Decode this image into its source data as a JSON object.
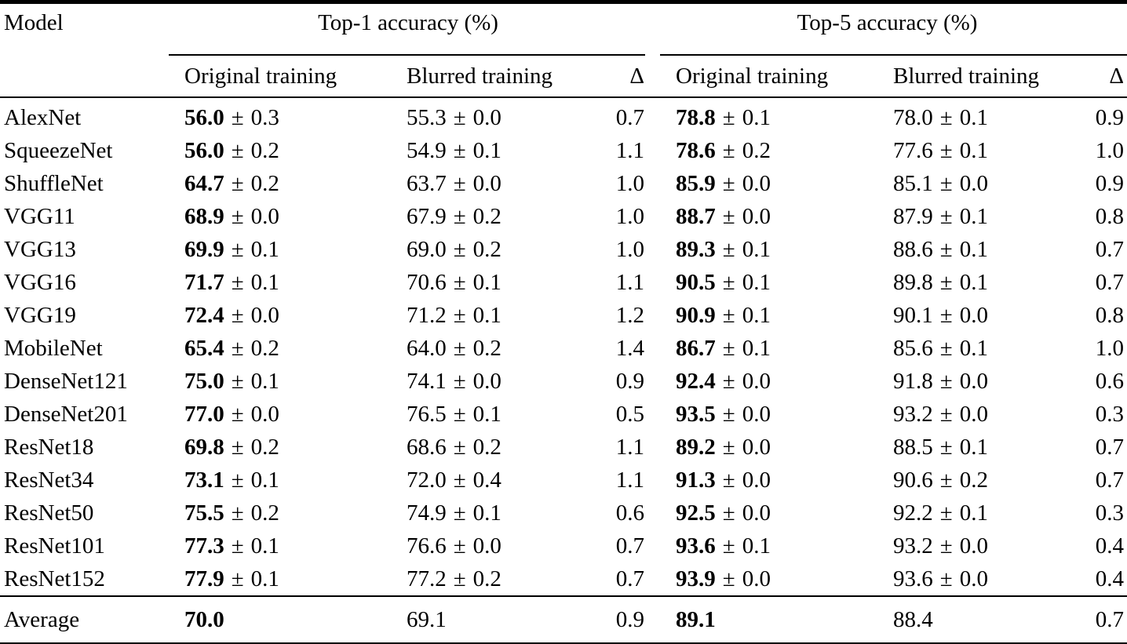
{
  "table": {
    "pm": "±",
    "header": {
      "model": "Model",
      "top1_group": "Top-1 accuracy (%)",
      "top5_group": "Top-5 accuracy (%)",
      "original": "Original training",
      "blurred": "Blurred training",
      "delta": "Δ"
    },
    "rows": [
      {
        "model": "AlexNet",
        "t1_orig": "56.0",
        "t1_orig_std": "0.3",
        "t1_blur": "55.3",
        "t1_blur_std": "0.0",
        "t1_delta": "0.7",
        "t5_orig": "78.8",
        "t5_orig_std": "0.1",
        "t5_blur": "78.0",
        "t5_blur_std": "0.1",
        "t5_delta": "0.9"
      },
      {
        "model": "SqueezeNet",
        "t1_orig": "56.0",
        "t1_orig_std": "0.2",
        "t1_blur": "54.9",
        "t1_blur_std": "0.1",
        "t1_delta": "1.1",
        "t5_orig": "78.6",
        "t5_orig_std": "0.2",
        "t5_blur": "77.6",
        "t5_blur_std": "0.1",
        "t5_delta": "1.0"
      },
      {
        "model": "ShuffleNet",
        "t1_orig": "64.7",
        "t1_orig_std": "0.2",
        "t1_blur": "63.7",
        "t1_blur_std": "0.0",
        "t1_delta": "1.0",
        "t5_orig": "85.9",
        "t5_orig_std": "0.0",
        "t5_blur": "85.1",
        "t5_blur_std": "0.0",
        "t5_delta": "0.9"
      },
      {
        "model": "VGG11",
        "t1_orig": "68.9",
        "t1_orig_std": "0.0",
        "t1_blur": "67.9",
        "t1_blur_std": "0.2",
        "t1_delta": "1.0",
        "t5_orig": "88.7",
        "t5_orig_std": "0.0",
        "t5_blur": "87.9",
        "t5_blur_std": "0.1",
        "t5_delta": "0.8"
      },
      {
        "model": "VGG13",
        "t1_orig": "69.9",
        "t1_orig_std": "0.1",
        "t1_blur": "69.0",
        "t1_blur_std": "0.2",
        "t1_delta": "1.0",
        "t5_orig": "89.3",
        "t5_orig_std": "0.1",
        "t5_blur": "88.6",
        "t5_blur_std": "0.1",
        "t5_delta": "0.7"
      },
      {
        "model": "VGG16",
        "t1_orig": "71.7",
        "t1_orig_std": "0.1",
        "t1_blur": "70.6",
        "t1_blur_std": "0.1",
        "t1_delta": "1.1",
        "t5_orig": "90.5",
        "t5_orig_std": "0.1",
        "t5_blur": "89.8",
        "t5_blur_std": "0.1",
        "t5_delta": "0.7"
      },
      {
        "model": "VGG19",
        "t1_orig": "72.4",
        "t1_orig_std": "0.0",
        "t1_blur": "71.2",
        "t1_blur_std": "0.1",
        "t1_delta": "1.2",
        "t5_orig": "90.9",
        "t5_orig_std": "0.1",
        "t5_blur": "90.1",
        "t5_blur_std": "0.0",
        "t5_delta": "0.8"
      },
      {
        "model": "MobileNet",
        "t1_orig": "65.4",
        "t1_orig_std": "0.2",
        "t1_blur": "64.0",
        "t1_blur_std": "0.2",
        "t1_delta": "1.4",
        "t5_orig": "86.7",
        "t5_orig_std": "0.1",
        "t5_blur": "85.6",
        "t5_blur_std": "0.1",
        "t5_delta": "1.0"
      },
      {
        "model": "DenseNet121",
        "t1_orig": "75.0",
        "t1_orig_std": "0.1",
        "t1_blur": "74.1",
        "t1_blur_std": "0.0",
        "t1_delta": "0.9",
        "t5_orig": "92.4",
        "t5_orig_std": "0.0",
        "t5_blur": "91.8",
        "t5_blur_std": "0.0",
        "t5_delta": "0.6"
      },
      {
        "model": "DenseNet201",
        "t1_orig": "77.0",
        "t1_orig_std": "0.0",
        "t1_blur": "76.5",
        "t1_blur_std": "0.1",
        "t1_delta": "0.5",
        "t5_orig": "93.5",
        "t5_orig_std": "0.0",
        "t5_blur": "93.2",
        "t5_blur_std": "0.0",
        "t5_delta": "0.3"
      },
      {
        "model": "ResNet18",
        "t1_orig": "69.8",
        "t1_orig_std": "0.2",
        "t1_blur": "68.6",
        "t1_blur_std": "0.2",
        "t1_delta": "1.1",
        "t5_orig": "89.2",
        "t5_orig_std": "0.0",
        "t5_blur": "88.5",
        "t5_blur_std": "0.1",
        "t5_delta": "0.7"
      },
      {
        "model": "ResNet34",
        "t1_orig": "73.1",
        "t1_orig_std": "0.1",
        "t1_blur": "72.0",
        "t1_blur_std": "0.4",
        "t1_delta": "1.1",
        "t5_orig": "91.3",
        "t5_orig_std": "0.0",
        "t5_blur": "90.6",
        "t5_blur_std": "0.2",
        "t5_delta": "0.7"
      },
      {
        "model": "ResNet50",
        "t1_orig": "75.5",
        "t1_orig_std": "0.2",
        "t1_blur": "74.9",
        "t1_blur_std": "0.1",
        "t1_delta": "0.6",
        "t5_orig": "92.5",
        "t5_orig_std": "0.0",
        "t5_blur": "92.2",
        "t5_blur_std": "0.1",
        "t5_delta": "0.3"
      },
      {
        "model": "ResNet101",
        "t1_orig": "77.3",
        "t1_orig_std": "0.1",
        "t1_blur": "76.6",
        "t1_blur_std": "0.0",
        "t1_delta": "0.7",
        "t5_orig": "93.6",
        "t5_orig_std": "0.1",
        "t5_blur": "93.2",
        "t5_blur_std": "0.0",
        "t5_delta": "0.4"
      },
      {
        "model": "ResNet152",
        "t1_orig": "77.9",
        "t1_orig_std": "0.1",
        "t1_blur": "77.2",
        "t1_blur_std": "0.2",
        "t1_delta": "0.7",
        "t5_orig": "93.9",
        "t5_orig_std": "0.0",
        "t5_blur": "93.6",
        "t5_blur_std": "0.0",
        "t5_delta": "0.4"
      }
    ],
    "average": {
      "label": "Average",
      "t1_orig": "70.0",
      "t1_blur": "69.1",
      "t1_delta": "0.9",
      "t5_orig": "89.1",
      "t5_blur": "88.4",
      "t5_delta": "0.7"
    }
  }
}
